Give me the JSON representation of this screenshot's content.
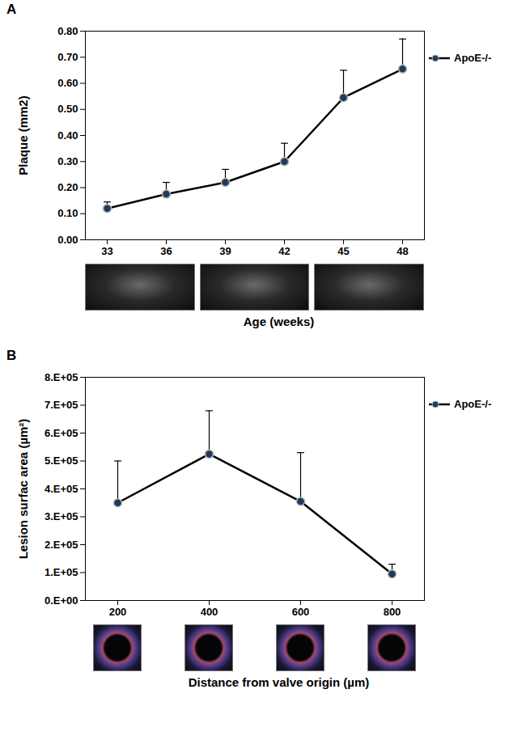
{
  "chart_data": [
    {
      "type": "line",
      "title": "A",
      "ylabel": "Plaque (mm2)",
      "xlabel": "Age (weeks)",
      "categories": [
        33,
        36,
        39,
        42,
        45,
        48
      ],
      "series": [
        {
          "name": "ApoE-/-",
          "color": "#1f3a5c",
          "values": [
            0.12,
            0.175,
            0.22,
            0.3,
            0.545,
            0.655
          ],
          "errors": [
            0.025,
            0.045,
            0.05,
            0.07,
            0.105,
            0.115
          ]
        }
      ],
      "ylim": [
        0,
        0.8
      ],
      "yticks": [
        {
          "value": 0,
          "label": "0.00"
        },
        {
          "value": 0.1,
          "label": "0.10"
        },
        {
          "value": 0.2,
          "label": "0.20"
        },
        {
          "value": 0.3,
          "label": "0.30"
        },
        {
          "value": 0.4,
          "label": "0.40"
        },
        {
          "value": 0.5,
          "label": "0.50"
        },
        {
          "value": 0.6,
          "label": "0.60"
        },
        {
          "value": 0.7,
          "label": "0.70"
        },
        {
          "value": 0.8,
          "label": "0.80"
        }
      ],
      "legend": "right",
      "grid": false
    },
    {
      "type": "line",
      "title": "B",
      "ylabel": "Lesion surfac area (µm²)",
      "xlabel": "Distance from valve origin (µm)",
      "categories": [
        200,
        400,
        600,
        800
      ],
      "series": [
        {
          "name": "ApoE-/-",
          "color": "#1f3a5c",
          "values": [
            350000,
            525000,
            355000,
            95000
          ],
          "errors": [
            150000,
            155000,
            175000,
            35000
          ]
        }
      ],
      "ylim": [
        0,
        800000
      ],
      "yticks": [
        {
          "value": 0,
          "label": "0.E+00"
        },
        {
          "value": 100000,
          "label": "1.E+05"
        },
        {
          "value": 200000,
          "label": "2.E+05"
        },
        {
          "value": 300000,
          "label": "3.E+05"
        },
        {
          "value": 400000,
          "label": "4.E+05"
        },
        {
          "value": 500000,
          "label": "5.E+05"
        },
        {
          "value": 600000,
          "label": "6.E+05"
        },
        {
          "value": 700000,
          "label": "7.E+05"
        },
        {
          "value": 800000,
          "label": "8.E+05"
        }
      ],
      "legend": "right",
      "grid": false
    }
  ]
}
